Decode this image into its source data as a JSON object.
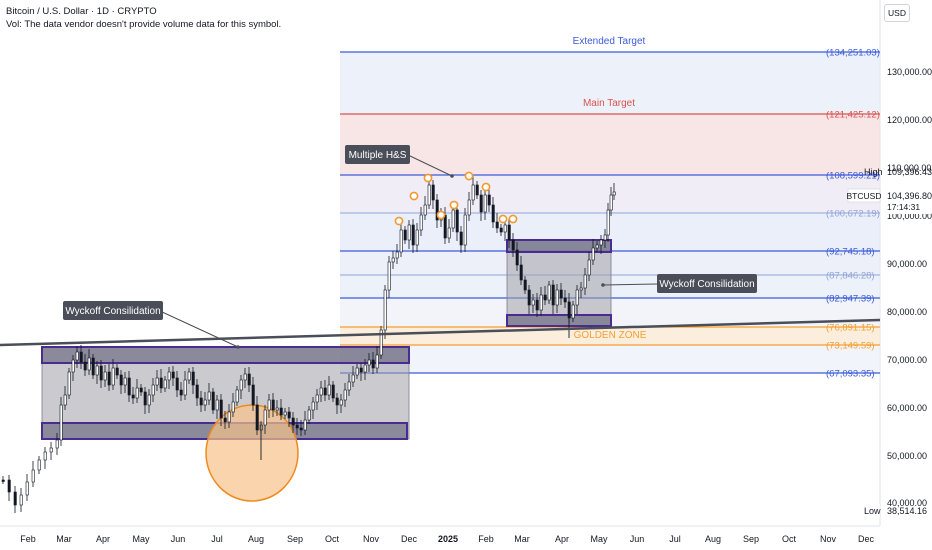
{
  "header": {
    "title": "Bitcoin / U.S. Dollar · 1D · CRYPTO",
    "vol_note": "Vol: The data vendor doesn't provide volume data for this symbol."
  },
  "currency_button": "USD",
  "colors": {
    "fib_blue": "#3b5bdb",
    "fib_light": "#90a4d9",
    "fib_orange": "#f59f30",
    "fib_red": "#d9534f",
    "box_outline": "#4a2b8f",
    "candle_up": "#131722",
    "candle_down": "#131722",
    "label_bg": "#4a4e59",
    "circle_fill": "#f7c28a",
    "circle_stroke": "#f08a1c",
    "marker": "#f29a2e",
    "high_low_label": "#131722"
  },
  "y_axis": {
    "ticks": [
      "130,000.00",
      "120,000.00",
      "110,000.00",
      "100,000.00",
      "90,000.00",
      "80,000.00",
      "70,000.00",
      "60,000.00",
      "50,000.00",
      "40,000.00"
    ],
    "high_label": "High",
    "high_value": "109,396.43",
    "low_label": "Low",
    "low_value": "38,514.16",
    "current_symbol": "BTCUSD",
    "current_price": "104,396.80",
    "countdown": "17:14:31"
  },
  "x_axis": {
    "ticks": [
      "Feb",
      "Mar",
      "Apr",
      "May",
      "Jun",
      "Jul",
      "Aug",
      "Sep",
      "Oct",
      "Nov",
      "Dec",
      "2025",
      "Feb",
      "Mar",
      "Apr",
      "May",
      "Jun",
      "Jul",
      "Aug",
      "Sep",
      "Oct",
      "Nov",
      "Dec"
    ]
  },
  "fib_levels": [
    {
      "value": "(134,251.03)",
      "color": "blue",
      "caption": "Extended Target"
    },
    {
      "value": "(121,425.12)",
      "color": "red",
      "caption": "Main Target"
    },
    {
      "value": "(108,599.21)",
      "color": "blue",
      "caption": ""
    },
    {
      "value": "(100,672.19)",
      "color": "light",
      "caption": ""
    },
    {
      "value": "(92,745.18)",
      "color": "blue",
      "caption": ""
    },
    {
      "value": "(87,846.28)",
      "color": "light",
      "caption": ""
    },
    {
      "value": "(82,947.39)",
      "color": "blue",
      "caption": ""
    },
    {
      "value": "(76,891.15)",
      "color": "orange",
      "caption": "GOLDEN ZONE"
    },
    {
      "value": "(73,149.59)",
      "color": "orange",
      "caption": ""
    },
    {
      "value": "(67,093.35)",
      "color": "blue",
      "caption": ""
    }
  ],
  "annotations": {
    "wyckoff_left": "Wyckoff Consilidation",
    "wyckoff_right": "Wyckoff Consilidation",
    "multiple_hs": "Multiple H&S"
  }
}
